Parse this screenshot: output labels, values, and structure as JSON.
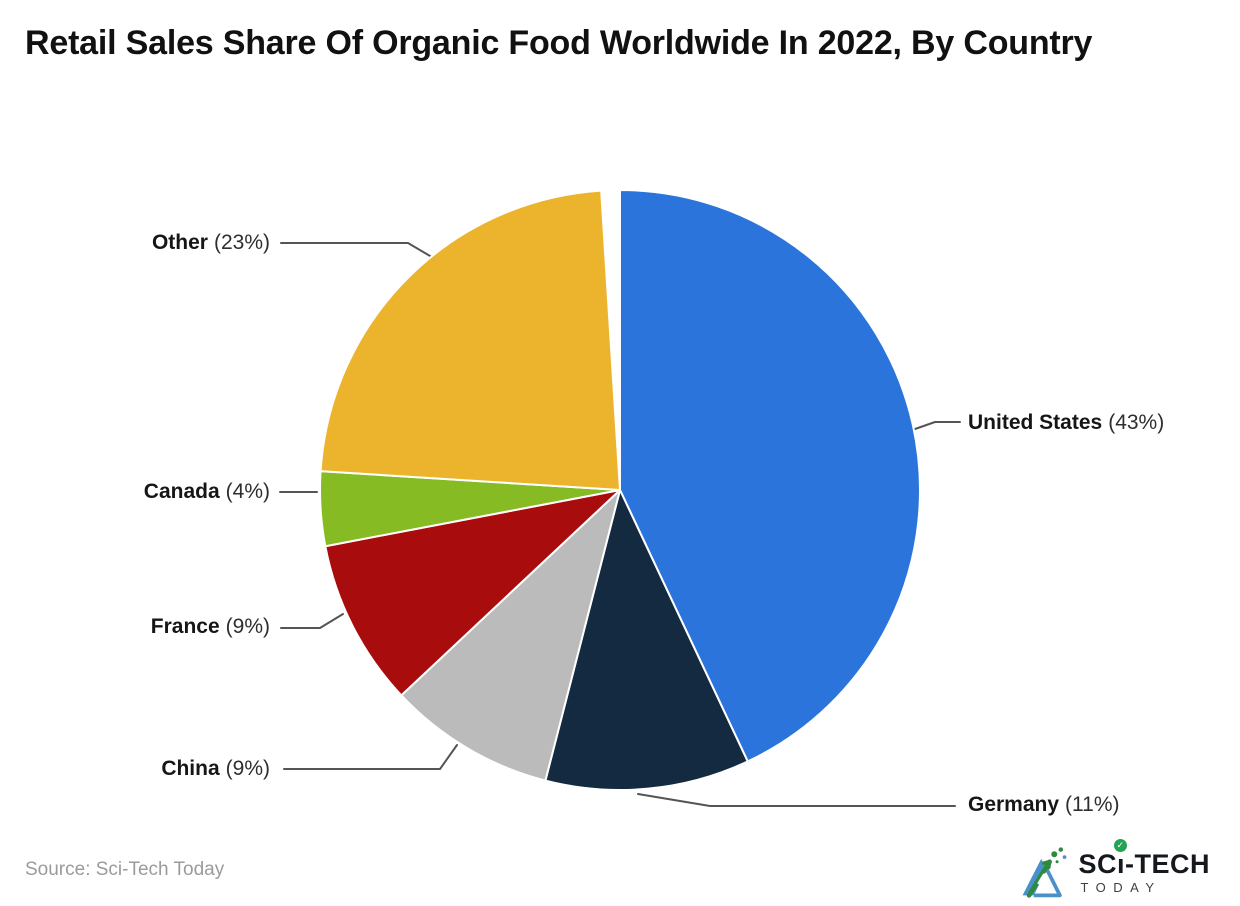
{
  "title": "Retail Sales Share Of Organic Food Worldwide In 2022, By Country",
  "source": "Source: Sci-Tech Today",
  "logo": {
    "main_pre": "SC",
    "main_i": "ı",
    "main_post": "-TECH",
    "sub": "TODAY",
    "check": "✓",
    "check_color": "#23a455"
  },
  "colors": {
    "leader_line": "#555555",
    "slice_stroke": "#ffffff",
    "title_text": "#111111",
    "source_text": "#9b9b9b"
  },
  "chart_data": {
    "type": "pie",
    "title": "Retail Sales Share Of Organic Food Worldwide In 2022, By Country",
    "start_angle_deg": 0,
    "direction": "clockwise",
    "legend_position": "callout-labels",
    "slices": [
      {
        "name": "United States",
        "value": 43,
        "pct_label": "(43%)",
        "color": "#2B74DC"
      },
      {
        "name": "Germany",
        "value": 11,
        "pct_label": "(11%)",
        "color": "#132A40"
      },
      {
        "name": "China",
        "value": 9,
        "pct_label": "(9%)",
        "color": "#BBBBBB"
      },
      {
        "name": "France",
        "value": 9,
        "pct_label": "(9%)",
        "color": "#A80C0C"
      },
      {
        "name": "Canada",
        "value": 4,
        "pct_label": "(4%)",
        "color": "#87BB23"
      },
      {
        "name": "Other",
        "value": 23,
        "pct_label": "(23%)",
        "color": "#EBB42C"
      }
    ]
  }
}
